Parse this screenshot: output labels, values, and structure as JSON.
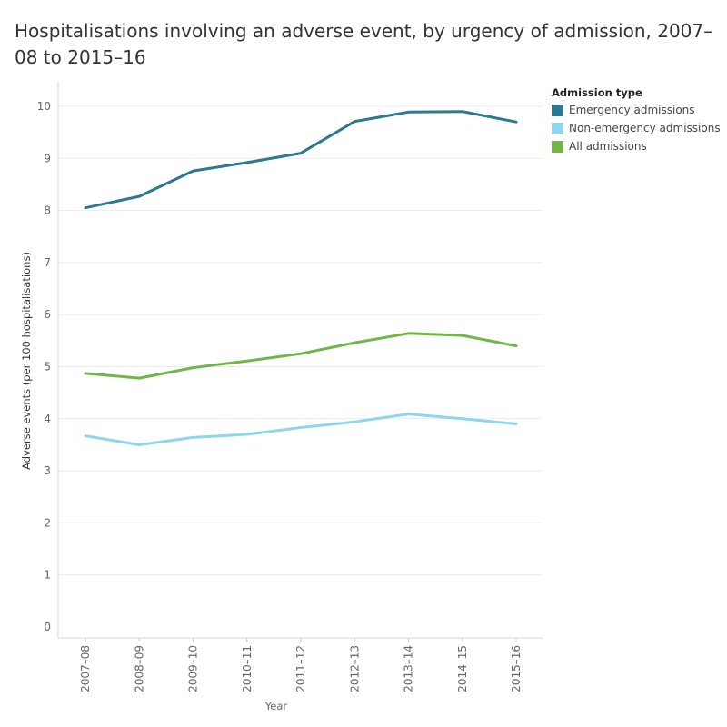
{
  "title": "Hospitalisations involving an adverse event, by urgency of admission, 2007–08 to 2015–16",
  "chart_data": {
    "type": "line",
    "title": "Hospitalisations involving an adverse event, by urgency of admission, 2007–08 to 2015–16",
    "xlabel": "Year",
    "ylabel": "Adverse events (per 100 hospitalisations)",
    "categories": [
      "2007–08",
      "2008–09",
      "2009–10",
      "2010–11",
      "2011–12",
      "2012–13",
      "2013–14",
      "2014–15",
      "2015–16"
    ],
    "ylim": [
      0,
      10
    ],
    "yticks": [
      "0",
      "1",
      "2",
      "3",
      "4",
      "5",
      "6",
      "7",
      "8",
      "9",
      "10"
    ],
    "grid": true,
    "legend_title": "Admission type",
    "legend_position": "top-right",
    "series": [
      {
        "name": "Emergency admissions",
        "color": "#2c7a8f",
        "values": [
          8.05,
          8.27,
          8.76,
          8.92,
          9.1,
          9.71,
          9.89,
          9.9,
          9.7
        ]
      },
      {
        "name": "Non-emergency admissions",
        "color": "#8fd6ec",
        "values": [
          3.67,
          3.5,
          3.64,
          3.7,
          3.83,
          3.94,
          4.09,
          4.0,
          3.9
        ]
      },
      {
        "name": "All admissions",
        "color": "#72b64a",
        "values": [
          4.87,
          4.78,
          4.98,
          5.11,
          5.25,
          5.46,
          5.64,
          5.6,
          5.4
        ]
      }
    ]
  }
}
